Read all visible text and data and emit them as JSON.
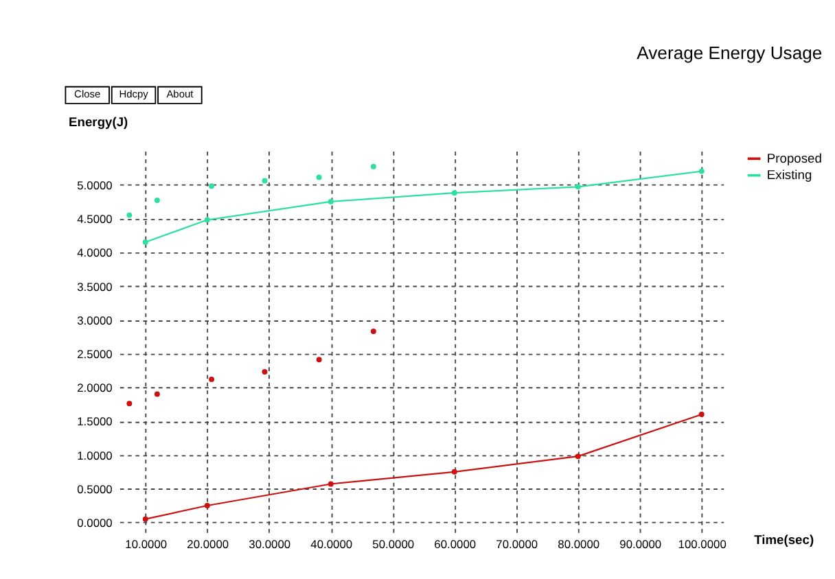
{
  "chart_data": {
    "type": "line",
    "title": "Average Energy Usage",
    "xlabel": "Time(sec)",
    "ylabel": "Energy(J)",
    "annotations": [
      "Close",
      "Hdcpy",
      "About"
    ],
    "series": [
      {
        "name": "Proposed",
        "color": "#cc1111",
        "x": [
          10,
          20,
          40,
          60,
          80,
          100
        ],
        "values": [
          0.05,
          0.25,
          0.57,
          0.75,
          0.98,
          1.6
        ]
      },
      {
        "name": "Existing",
        "color": "#2ee0a0",
        "x": [
          10,
          20,
          40,
          60,
          80,
          100
        ],
        "values": [
          4.15,
          4.48,
          4.75,
          4.88,
          4.97,
          5.2
        ]
      },
      {
        "type": "scatter",
        "color": "#2ee0a0",
        "x": [
          7.4,
          11.9,
          20.7,
          29.3,
          38.1,
          46.9
        ],
        "values": [
          4.55,
          4.77,
          4.98,
          5.06,
          5.11,
          5.27
        ]
      },
      {
        "type": "scatter",
        "color": "#cc1111",
        "x": [
          7.4,
          11.9,
          20.7,
          29.3,
          38.1,
          46.9
        ],
        "values": [
          1.76,
          1.9,
          2.12,
          2.23,
          2.41,
          2.83
        ]
      }
    ],
    "xlim": [
      5.8,
      103.5
    ],
    "ylim": [
      -0.2,
      5.5
    ],
    "xticks": [
      {
        "value": 10,
        "label": "10.0000"
      },
      {
        "value": 20,
        "label": "20.0000"
      },
      {
        "value": 30,
        "label": "30.0000"
      },
      {
        "value": 40,
        "label": "40.0000"
      },
      {
        "value": 50,
        "label": "50.0000"
      },
      {
        "value": 60,
        "label": "60.0000"
      },
      {
        "value": 70,
        "label": "70.0000"
      },
      {
        "value": 80,
        "label": "80.0000"
      },
      {
        "value": 90,
        "label": "90.0000"
      },
      {
        "value": 100,
        "label": "100.0000"
      }
    ],
    "yticks": [
      {
        "value": 0,
        "label": "0.0000"
      },
      {
        "value": 0.5,
        "label": "0.5000"
      },
      {
        "value": 1,
        "label": "1.0000"
      },
      {
        "value": 1.5,
        "label": "1.5000"
      },
      {
        "value": 2,
        "label": "2.0000"
      },
      {
        "value": 2.5,
        "label": "2.5000"
      },
      {
        "value": 3,
        "label": "3.0000"
      },
      {
        "value": 3.5,
        "label": "3.5000"
      },
      {
        "value": 4,
        "label": "4.0000"
      },
      {
        "value": 4.5,
        "label": "4.5000"
      },
      {
        "value": 5,
        "label": "5.0000"
      }
    ],
    "grid": true,
    "legend": "top right",
    "marker": "circle",
    "line_style": "solid"
  }
}
